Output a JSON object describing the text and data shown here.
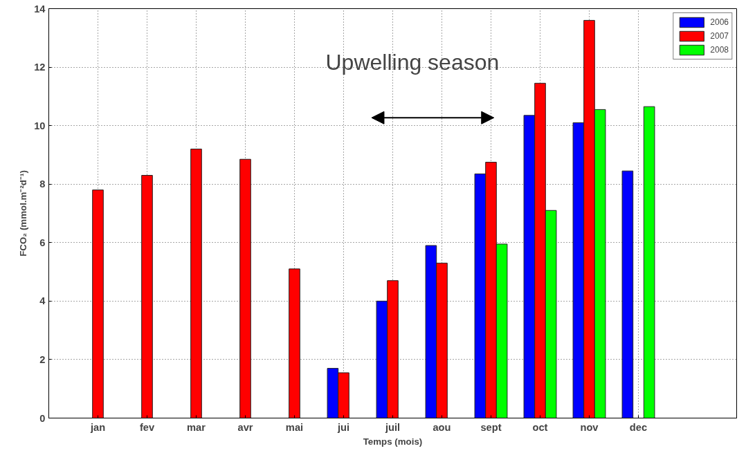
{
  "chart_data": {
    "type": "bar",
    "categories": [
      "jan",
      "fev",
      "mar",
      "avr",
      "mai",
      "jui",
      "juil",
      "aou",
      "sept",
      "oct",
      "nov",
      "dec"
    ],
    "series": [
      {
        "name": "2006",
        "color": "#0000ff",
        "values": [
          null,
          null,
          null,
          null,
          null,
          1.7,
          4.0,
          5.9,
          8.35,
          10.35,
          10.1,
          8.45
        ]
      },
      {
        "name": "2007",
        "color": "#ff0000",
        "values": [
          7.8,
          8.3,
          9.2,
          8.85,
          5.1,
          1.55,
          4.7,
          5.3,
          8.75,
          11.45,
          13.6,
          null
        ]
      },
      {
        "name": "2008",
        "color": "#00ff00",
        "values": [
          null,
          null,
          null,
          null,
          null,
          null,
          null,
          null,
          5.95,
          7.1,
          10.55,
          10.65
        ]
      }
    ],
    "xlabel": "Temps (mois)",
    "ylabel": "FCO₂ (mmol.m⁻²d⁻¹)",
    "ylim": [
      0,
      14
    ],
    "yticks": [
      0,
      2,
      4,
      6,
      8,
      10,
      12,
      14
    ],
    "annotations": [
      "Upwelling season"
    ],
    "grid": true,
    "legend": "top right"
  }
}
